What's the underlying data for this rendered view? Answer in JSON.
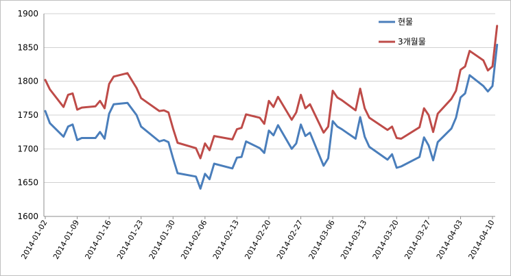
{
  "chart_data": {
    "type": "line",
    "title": "",
    "xlabel": "",
    "ylabel": "",
    "ylim": [
      1600,
      1900
    ],
    "yticks": [
      1600,
      1650,
      1700,
      1750,
      1800,
      1850,
      1900
    ],
    "grid": "horizontal",
    "legend_position": "top-right",
    "x_tick_labels": [
      "2014-01-02",
      "2014-01-09",
      "2014-01-16",
      "2014-01-23",
      "2014-01-30",
      "2014-02-06",
      "2014-02-13",
      "2014-02-20",
      "2014-02-27",
      "2014-03-06",
      "2014-03-13",
      "2014-03-20",
      "2014-03-27",
      "2014-04-03",
      "2014-04-10"
    ],
    "x_start": "2014-01-02",
    "x_end": "2014-04-10",
    "series": [
      {
        "name": "현물",
        "color": "#4a7ebb",
        "points": [
          [
            "2014-01-02",
            1756
          ],
          [
            "2014-01-03",
            1738
          ],
          [
            "2014-01-06",
            1718
          ],
          [
            "2014-01-07",
            1733
          ],
          [
            "2014-01-08",
            1736
          ],
          [
            "2014-01-09",
            1713
          ],
          [
            "2014-01-10",
            1716
          ],
          [
            "2014-01-13",
            1716
          ],
          [
            "2014-01-14",
            1725
          ],
          [
            "2014-01-15",
            1715
          ],
          [
            "2014-01-16",
            1752
          ],
          [
            "2014-01-17",
            1766
          ],
          [
            "2014-01-20",
            1768
          ],
          [
            "2014-01-22",
            1750
          ],
          [
            "2014-01-23",
            1733
          ],
          [
            "2014-01-27",
            1711
          ],
          [
            "2014-01-28",
            1713
          ],
          [
            "2014-01-29",
            1710
          ],
          [
            "2014-01-30",
            1686
          ],
          [
            "2014-01-31",
            1664
          ],
          [
            "2014-02-04",
            1659
          ],
          [
            "2014-02-05",
            1641
          ],
          [
            "2014-02-06",
            1663
          ],
          [
            "2014-02-07",
            1655
          ],
          [
            "2014-02-08",
            1678
          ],
          [
            "2014-02-12",
            1671
          ],
          [
            "2014-02-13",
            1687
          ],
          [
            "2014-02-14",
            1688
          ],
          [
            "2014-02-15",
            1711
          ],
          [
            "2014-02-18",
            1701
          ],
          [
            "2014-02-19",
            1694
          ],
          [
            "2014-02-20",
            1727
          ],
          [
            "2014-02-21",
            1720
          ],
          [
            "2014-02-22",
            1735
          ],
          [
            "2014-02-25",
            1700
          ],
          [
            "2014-02-26",
            1708
          ],
          [
            "2014-02-27",
            1736
          ],
          [
            "2014-02-28",
            1719
          ],
          [
            "2014-03-01",
            1724
          ],
          [
            "2014-03-04",
            1675
          ],
          [
            "2014-03-05",
            1686
          ],
          [
            "2014-03-06",
            1741
          ],
          [
            "2014-03-07",
            1733
          ],
          [
            "2014-03-08",
            1729
          ],
          [
            "2014-03-11",
            1715
          ],
          [
            "2014-03-12",
            1747
          ],
          [
            "2014-03-13",
            1718
          ],
          [
            "2014-03-14",
            1703
          ],
          [
            "2014-03-18",
            1684
          ],
          [
            "2014-03-19",
            1692
          ],
          [
            "2014-03-20",
            1672
          ],
          [
            "2014-03-21",
            1674
          ],
          [
            "2014-03-25",
            1688
          ],
          [
            "2014-03-26",
            1717
          ],
          [
            "2014-03-27",
            1705
          ],
          [
            "2014-03-28",
            1683
          ],
          [
            "2014-03-29",
            1710
          ],
          [
            "2014-04-01",
            1730
          ],
          [
            "2014-04-02",
            1746
          ],
          [
            "2014-04-03",
            1776
          ],
          [
            "2014-04-04",
            1782
          ],
          [
            "2014-04-05",
            1809
          ],
          [
            "2014-04-08",
            1793
          ],
          [
            "2014-04-09",
            1785
          ],
          [
            "2014-04-10",
            1793
          ],
          [
            "2014-04-11",
            1854
          ]
        ]
      },
      {
        "name": "3개월물",
        "color": "#be4b48",
        "points": [
          [
            "2014-01-02",
            1802
          ],
          [
            "2014-01-03",
            1788
          ],
          [
            "2014-01-06",
            1762
          ],
          [
            "2014-01-07",
            1780
          ],
          [
            "2014-01-08",
            1782
          ],
          [
            "2014-01-09",
            1758
          ],
          [
            "2014-01-10",
            1761
          ],
          [
            "2014-01-13",
            1763
          ],
          [
            "2014-01-14",
            1771
          ],
          [
            "2014-01-15",
            1760
          ],
          [
            "2014-01-16",
            1796
          ],
          [
            "2014-01-17",
            1807
          ],
          [
            "2014-01-20",
            1812
          ],
          [
            "2014-01-22",
            1790
          ],
          [
            "2014-01-23",
            1775
          ],
          [
            "2014-01-27",
            1756
          ],
          [
            "2014-01-28",
            1757
          ],
          [
            "2014-01-29",
            1754
          ],
          [
            "2014-01-30",
            1730
          ],
          [
            "2014-01-31",
            1709
          ],
          [
            "2014-02-04",
            1701
          ],
          [
            "2014-02-05",
            1686
          ],
          [
            "2014-02-06",
            1708
          ],
          [
            "2014-02-07",
            1698
          ],
          [
            "2014-02-08",
            1719
          ],
          [
            "2014-02-12",
            1714
          ],
          [
            "2014-02-13",
            1729
          ],
          [
            "2014-02-14",
            1731
          ],
          [
            "2014-02-15",
            1751
          ],
          [
            "2014-02-18",
            1746
          ],
          [
            "2014-02-19",
            1737
          ],
          [
            "2014-02-20",
            1771
          ],
          [
            "2014-02-21",
            1762
          ],
          [
            "2014-02-22",
            1777
          ],
          [
            "2014-02-25",
            1743
          ],
          [
            "2014-02-26",
            1754
          ],
          [
            "2014-02-27",
            1780
          ],
          [
            "2014-02-28",
            1760
          ],
          [
            "2014-03-01",
            1766
          ],
          [
            "2014-03-04",
            1724
          ],
          [
            "2014-03-05",
            1733
          ],
          [
            "2014-03-06",
            1786
          ],
          [
            "2014-03-07",
            1776
          ],
          [
            "2014-03-08",
            1772
          ],
          [
            "2014-03-11",
            1757
          ],
          [
            "2014-03-12",
            1789
          ],
          [
            "2014-03-13",
            1760
          ],
          [
            "2014-03-14",
            1746
          ],
          [
            "2014-03-18",
            1728
          ],
          [
            "2014-03-19",
            1733
          ],
          [
            "2014-03-20",
            1716
          ],
          [
            "2014-03-21",
            1715
          ],
          [
            "2014-03-25",
            1732
          ],
          [
            "2014-03-26",
            1760
          ],
          [
            "2014-03-27",
            1750
          ],
          [
            "2014-03-28",
            1725
          ],
          [
            "2014-03-29",
            1752
          ],
          [
            "2014-04-01",
            1774
          ],
          [
            "2014-04-02",
            1786
          ],
          [
            "2014-04-03",
            1817
          ],
          [
            "2014-04-04",
            1822
          ],
          [
            "2014-04-05",
            1845
          ],
          [
            "2014-04-08",
            1831
          ],
          [
            "2014-04-09",
            1816
          ],
          [
            "2014-04-10",
            1822
          ],
          [
            "2014-04-11",
            1882
          ]
        ]
      }
    ]
  }
}
